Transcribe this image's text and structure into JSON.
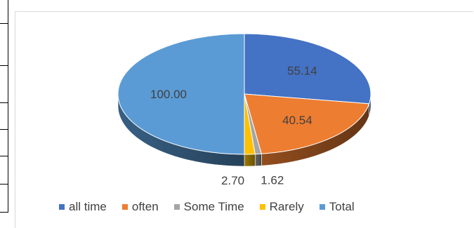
{
  "chart_data": {
    "type": "pie",
    "style": "3d",
    "categories": [
      "all time",
      "often",
      "Some Time",
      "Rarely",
      "Total"
    ],
    "values": [
      55.14,
      40.54,
      1.62,
      2.7,
      100.0
    ],
    "data_labels": [
      "55.14",
      "40.54",
      "1.62",
      "2.70",
      "100.00"
    ],
    "colors": [
      "#4472C4",
      "#ED7D31",
      "#A5A5A5",
      "#FFC000",
      "#5B9BD5"
    ],
    "legend": "bottom",
    "title": ""
  }
}
